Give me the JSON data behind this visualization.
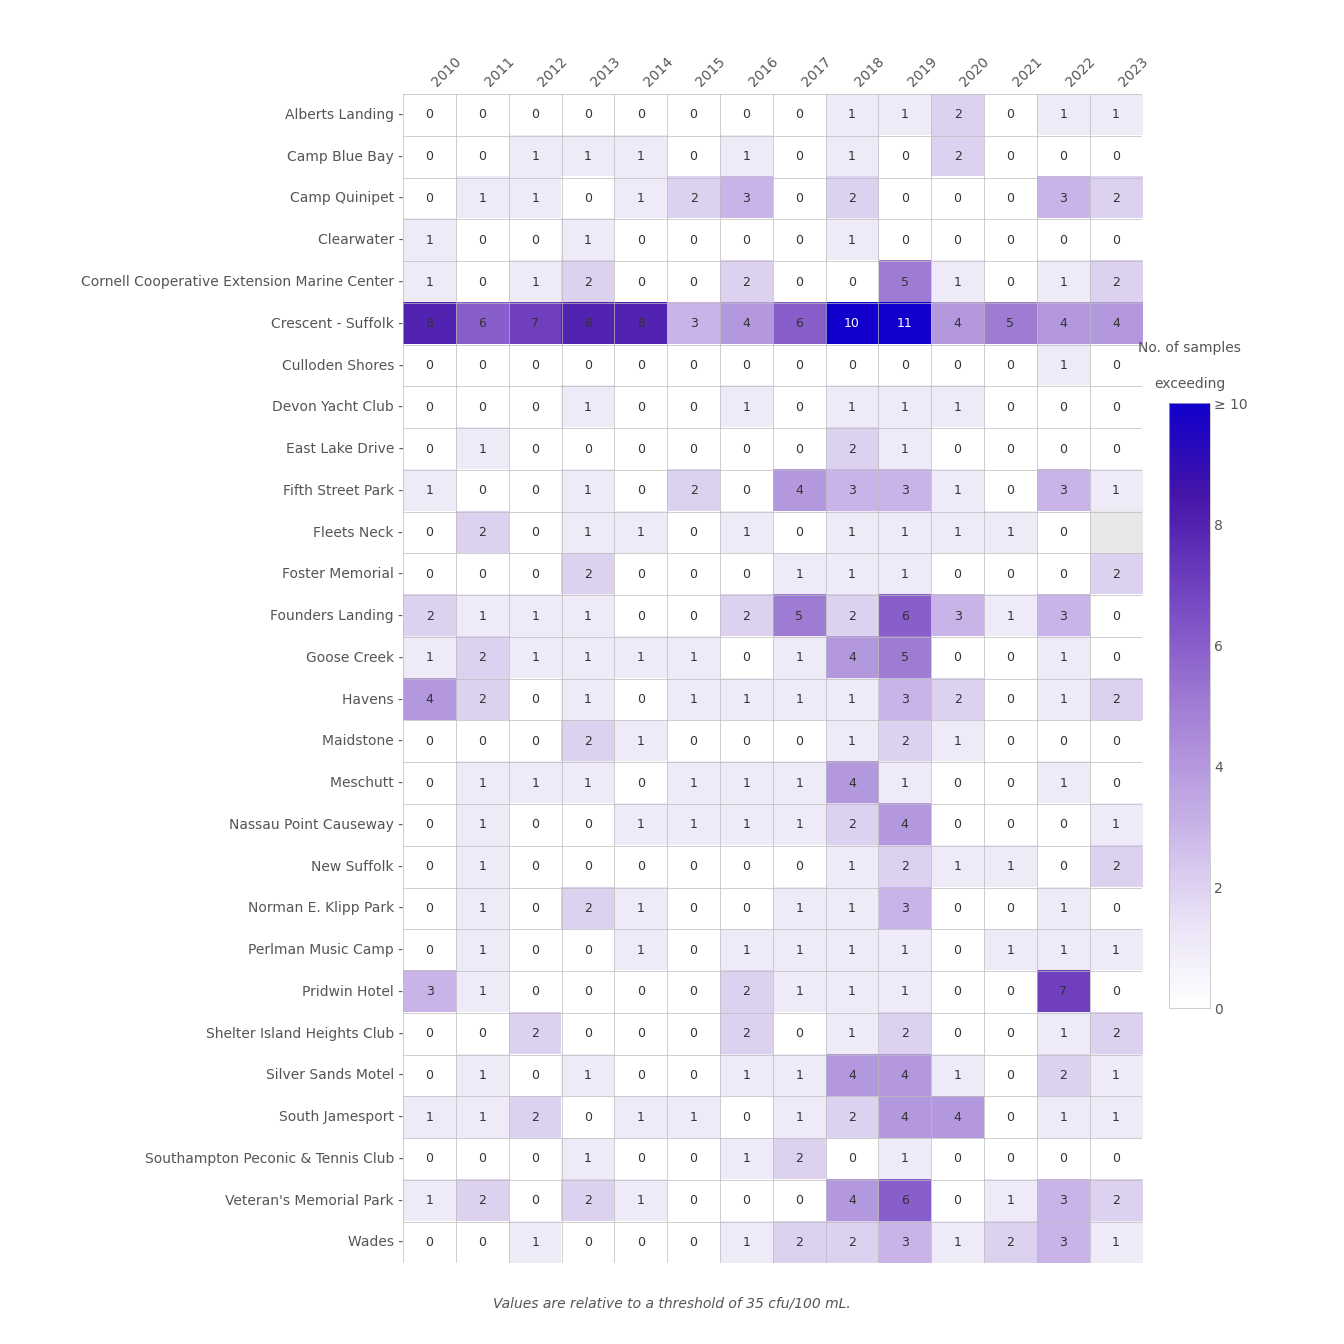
{
  "beaches": [
    "Alberts Landing",
    "Camp Blue Bay",
    "Camp Quinipet",
    "Clearwater",
    "Cornell Cooperative Extension Marine Center",
    "Crescent - Suffolk",
    "Culloden Shores",
    "Devon Yacht Club",
    "East Lake Drive",
    "Fifth Street Park",
    "Fleets Neck",
    "Foster Memorial",
    "Founders Landing",
    "Goose Creek",
    "Havens",
    "Maidstone",
    "Meschutt",
    "Nassau Point Causeway",
    "New Suffolk",
    "Norman E. Klipp Park",
    "Perlman Music Camp",
    "Pridwin Hotel",
    "Shelter Island Heights Club",
    "Silver Sands Motel",
    "South Jamesport",
    "Southampton Peconic & Tennis Club",
    "Veteran's Memorial Park",
    "Wades"
  ],
  "years": [
    2010,
    2011,
    2012,
    2013,
    2014,
    2015,
    2016,
    2017,
    2018,
    2019,
    2020,
    2021,
    2022,
    2023
  ],
  "values": [
    [
      0,
      0,
      0,
      0,
      0,
      0,
      0,
      0,
      1,
      1,
      2,
      0,
      1,
      1
    ],
    [
      0,
      0,
      1,
      1,
      1,
      0,
      1,
      0,
      1,
      0,
      2,
      0,
      0,
      0
    ],
    [
      0,
      1,
      1,
      0,
      1,
      2,
      3,
      0,
      2,
      0,
      0,
      0,
      3,
      2
    ],
    [
      1,
      0,
      0,
      1,
      0,
      0,
      0,
      0,
      1,
      0,
      0,
      0,
      0,
      0
    ],
    [
      1,
      0,
      1,
      2,
      0,
      0,
      2,
      0,
      0,
      5,
      1,
      0,
      1,
      2
    ],
    [
      8,
      6,
      7,
      8,
      8,
      3,
      4,
      6,
      10,
      11,
      4,
      5,
      4,
      4
    ],
    [
      0,
      0,
      0,
      0,
      0,
      0,
      0,
      0,
      0,
      0,
      0,
      0,
      1,
      0
    ],
    [
      0,
      0,
      0,
      1,
      0,
      0,
      1,
      0,
      1,
      1,
      1,
      0,
      0,
      0
    ],
    [
      0,
      1,
      0,
      0,
      0,
      0,
      0,
      0,
      2,
      1,
      0,
      0,
      0,
      0
    ],
    [
      1,
      0,
      0,
      1,
      0,
      2,
      0,
      4,
      3,
      3,
      1,
      0,
      3,
      1
    ],
    [
      0,
      2,
      0,
      1,
      1,
      0,
      1,
      0,
      1,
      1,
      1,
      1,
      0,
      -1
    ],
    [
      0,
      0,
      0,
      2,
      0,
      0,
      0,
      1,
      1,
      1,
      0,
      0,
      0,
      2
    ],
    [
      2,
      1,
      1,
      1,
      0,
      0,
      2,
      5,
      2,
      6,
      3,
      1,
      3,
      0
    ],
    [
      1,
      2,
      1,
      1,
      1,
      1,
      0,
      1,
      4,
      5,
      0,
      0,
      1,
      0
    ],
    [
      4,
      2,
      0,
      1,
      0,
      1,
      1,
      1,
      1,
      3,
      2,
      0,
      1,
      2
    ],
    [
      0,
      0,
      0,
      2,
      1,
      0,
      0,
      0,
      1,
      2,
      1,
      0,
      0,
      0
    ],
    [
      0,
      1,
      1,
      1,
      0,
      1,
      1,
      1,
      4,
      1,
      0,
      0,
      1,
      0
    ],
    [
      0,
      1,
      0,
      0,
      1,
      1,
      1,
      1,
      2,
      4,
      0,
      0,
      0,
      1
    ],
    [
      0,
      1,
      0,
      0,
      0,
      0,
      0,
      0,
      1,
      2,
      1,
      1,
      0,
      2
    ],
    [
      0,
      1,
      0,
      2,
      1,
      0,
      0,
      1,
      1,
      3,
      0,
      0,
      1,
      0
    ],
    [
      0,
      1,
      0,
      0,
      1,
      0,
      1,
      1,
      1,
      1,
      0,
      1,
      1,
      1
    ],
    [
      3,
      1,
      0,
      0,
      0,
      0,
      2,
      1,
      1,
      1,
      0,
      0,
      7,
      0
    ],
    [
      0,
      0,
      2,
      0,
      0,
      0,
      2,
      0,
      1,
      2,
      0,
      0,
      1,
      2
    ],
    [
      0,
      1,
      0,
      1,
      0,
      0,
      1,
      1,
      4,
      4,
      1,
      0,
      2,
      1
    ],
    [
      1,
      1,
      2,
      0,
      1,
      1,
      0,
      1,
      2,
      4,
      4,
      0,
      1,
      1
    ],
    [
      0,
      0,
      0,
      1,
      0,
      0,
      1,
      2,
      0,
      1,
      0,
      0,
      0,
      0
    ],
    [
      1,
      2,
      0,
      2,
      1,
      0,
      0,
      0,
      4,
      6,
      0,
      1,
      3,
      2
    ],
    [
      0,
      0,
      1,
      0,
      0,
      0,
      1,
      2,
      2,
      3,
      1,
      2,
      3,
      1
    ]
  ],
  "colorbar_label_line1": "No. of samples",
  "colorbar_label_line2": "exceeding",
  "colorbar_ticks": [
    0,
    2,
    4,
    6,
    8,
    10
  ],
  "colorbar_ticklabels": [
    "0",
    "2",
    "4",
    "6",
    "8",
    "≥ 10"
  ],
  "vmin": 0,
  "vmax": 10,
  "footnote": "Values are relative to a threshold of 35 cfu/100 mL.",
  "text_color": "#555555",
  "nan_color": "#e8e8e8",
  "grid_color": "#bbbbbb"
}
